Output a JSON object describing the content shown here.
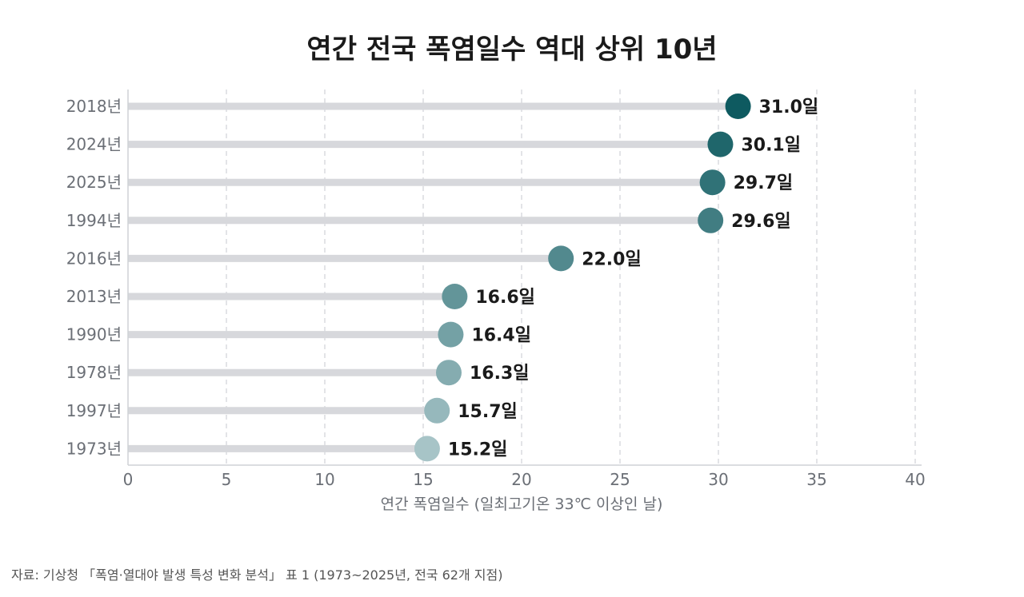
{
  "chart_data": {
    "type": "lollipop",
    "title": "연간 전국 폭염일수 역대 상위 10년",
    "xlabel": "연간 폭염일수 (일최고기온 33℃ 이상인 날)",
    "xlim": [
      0,
      40
    ],
    "xticks": [
      0,
      5,
      10,
      15,
      20,
      25,
      30,
      35,
      40
    ],
    "grid": true,
    "categories": [
      "2018년",
      "2024년",
      "2025년",
      "1994년",
      "2016년",
      "2013년",
      "1990년",
      "1978년",
      "1997년",
      "1973년"
    ],
    "values": [
      31.0,
      30.1,
      29.7,
      29.6,
      22.0,
      16.6,
      16.4,
      16.3,
      15.7,
      15.2
    ],
    "value_labels": [
      "31.0일",
      "30.1일",
      "29.7일",
      "29.6일",
      "22.0일",
      "16.6일",
      "16.4일",
      "16.3일",
      "15.7일",
      "15.2일"
    ],
    "colors": {
      "dot_dark": "#0e5a60",
      "dot_light": "#a7c4c7",
      "stem": "#d7d8dc",
      "grid": "#d4d6da",
      "axis": "#cfd2d6",
      "tick_label": "#6b6f76",
      "value_label": "#1a1a1a"
    }
  },
  "source": "자료: 기상청 「폭염·열대야 발생 특성 변화 분석」 표 1 (1973~2025년, 전국 62개 지점)"
}
